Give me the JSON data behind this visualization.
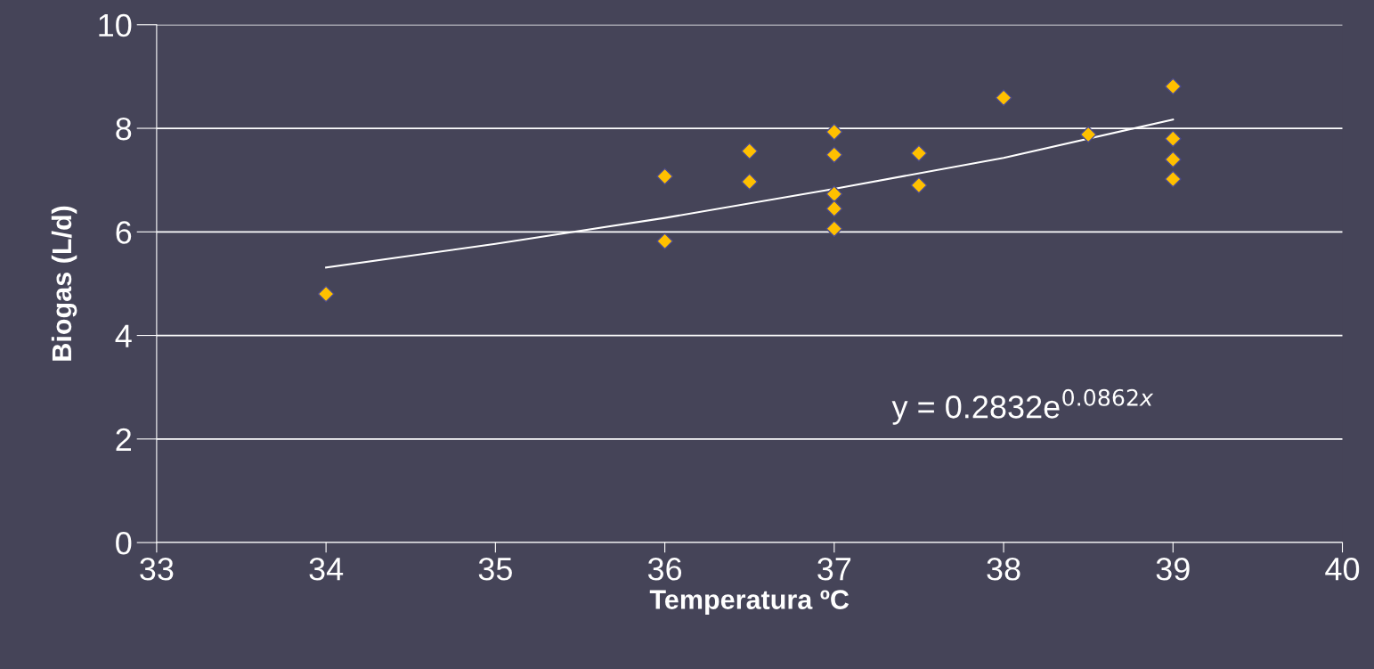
{
  "chart_data": {
    "type": "scatter",
    "xlabel": "Temperatura ºC",
    "ylabel": "Biogas (L/d)",
    "x": [
      34,
      36,
      36,
      36.5,
      36.5,
      37,
      37,
      37,
      37,
      37,
      37.5,
      37.5,
      38,
      38.5,
      39,
      39,
      39,
      39
    ],
    "series": [
      {
        "color": "#ffc000",
        "values": [
          4.8,
          7.07,
          5.82,
          7.56,
          6.97,
          7.93,
          7.49,
          6.73,
          6.45,
          6.06,
          7.52,
          6.9,
          8.59,
          7.88,
          8.81,
          7.8,
          7.4,
          7.02
        ]
      },
      {
        "type": "line",
        "color": "#ffffff",
        "marker": "none",
        "x": [
          34,
          35,
          36,
          37,
          38,
          39
        ],
        "values": [
          5.31,
          5.77,
          6.27,
          6.83,
          7.43,
          8.17
        ]
      }
    ],
    "annotations": [
      "y = 0.2832e$^{0.0862x}$"
    ],
    "marker": "diamond",
    "grid": "y",
    "xlim": [
      33,
      40
    ],
    "xticks": [
      33,
      34,
      35,
      36,
      37,
      38,
      39,
      40
    ],
    "ylim": [
      0,
      10
    ],
    "yticks": [
      0,
      2,
      4,
      6,
      8,
      10
    ]
  }
}
